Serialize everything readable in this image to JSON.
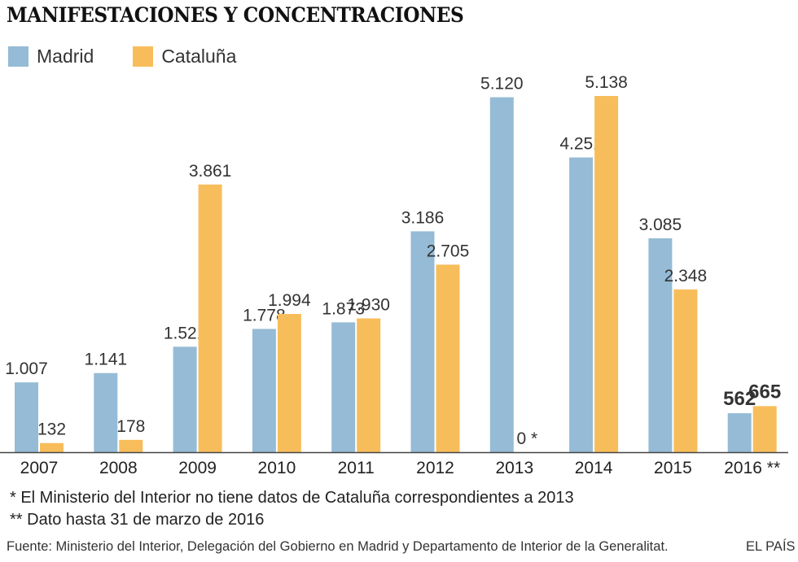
{
  "title": "MANIFESTACIONES Y CONCENTRACIONES",
  "legend": [
    {
      "label": "Madrid",
      "color": "#95bbd6"
    },
    {
      "label": "Cataluña",
      "color": "#f8bd5b"
    }
  ],
  "chart_data": {
    "type": "bar",
    "categories": [
      "2007",
      "2008",
      "2009",
      "2010",
      "2011",
      "2012",
      "2013",
      "2014",
      "2015",
      "2016 **"
    ],
    "series": [
      {
        "name": "Madrid",
        "color": "#95bbd6",
        "values": [
          1007,
          1141,
          1521,
          1778,
          1873,
          3186,
          5120,
          4251,
          3085,
          562
        ],
        "labels": [
          "1.007",
          "1.141",
          "1.521",
          "1.778",
          "1.873",
          "3.186",
          "5.120",
          "4.251",
          "3.085",
          "562"
        ]
      },
      {
        "name": "Cataluña",
        "color": "#f8bd5b",
        "values": [
          132,
          178,
          3861,
          1994,
          1930,
          2705,
          0,
          5138,
          2348,
          665
        ],
        "labels": [
          "132",
          "178",
          "3.861",
          "1.994",
          "1.930",
          "2.705",
          "0 *",
          "5.138",
          "2.348",
          "665"
        ]
      }
    ],
    "bold_labels_category": "2016 **",
    "ylim": [
      0,
      5138
    ]
  },
  "notes": [
    "* El Ministerio del Interior no tiene datos de Cataluña correspondientes a 2013",
    "** Dato hasta 31 de marzo de 2016"
  ],
  "source": "Fuente: Ministerio del Interior, Delegación del Gobierno en Madrid y Departamento de Interior de la Generalitat.",
  "brand": "EL PAÍS"
}
